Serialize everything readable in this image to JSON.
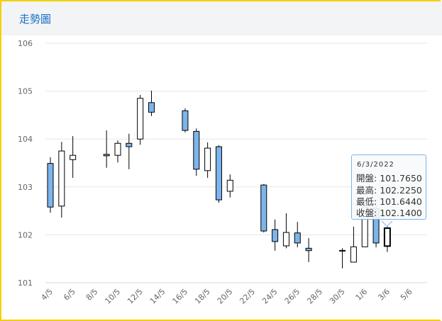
{
  "header": {
    "title": "走勢圖"
  },
  "colors": {
    "down": "#7cb5ec",
    "up": "#ffffff",
    "stroke": "#000000",
    "grid": "#e6e6e6",
    "accent": "#1a6fc4"
  },
  "tooltip": {
    "date": "6/3/2022",
    "open_label": "開盤",
    "open": "101.7650",
    "high_label": "最高",
    "high": "102.2250",
    "low_label": "最低",
    "low": "101.6440",
    "close_label": "收盤",
    "close": "102.1400"
  },
  "chart_data": {
    "type": "candlestick",
    "title": "走勢圖",
    "ylim": [
      101,
      106
    ],
    "yticks": [
      101,
      102,
      103,
      104,
      105,
      106
    ],
    "xtick_labels": [
      "4/5",
      "6/5",
      "8/5",
      "10/5",
      "12/5",
      "14/5",
      "16/5",
      "18/5",
      "20/5",
      "22/5",
      "24/5",
      "26/5",
      "28/5",
      "30/5",
      "1/6",
      "3/6",
      "5/6"
    ],
    "candles": [
      {
        "date": "4/5",
        "o": 103.49,
        "h": 103.62,
        "l": 102.46,
        "c": 102.58
      },
      {
        "date": "5/5",
        "o": 102.6,
        "h": 103.94,
        "l": 102.36,
        "c": 103.75
      },
      {
        "date": "6/5",
        "o": 103.57,
        "h": 104.06,
        "l": 103.19,
        "c": 103.66
      },
      {
        "date": "9/5",
        "o": 103.68,
        "h": 104.18,
        "l": 103.4,
        "c": 103.65
      },
      {
        "date": "10/5",
        "o": 103.66,
        "h": 103.97,
        "l": 103.51,
        "c": 103.91
      },
      {
        "date": "11/5",
        "o": 103.91,
        "h": 104.11,
        "l": 103.37,
        "c": 103.84
      },
      {
        "date": "12/5",
        "o": 104.0,
        "h": 104.92,
        "l": 103.88,
        "c": 104.85
      },
      {
        "date": "13/5",
        "o": 104.76,
        "h": 105.01,
        "l": 104.48,
        "c": 104.56
      },
      {
        "date": "16/5",
        "o": 104.59,
        "h": 104.64,
        "l": 104.14,
        "c": 104.18
      },
      {
        "date": "17/5",
        "o": 104.16,
        "h": 104.22,
        "l": 103.23,
        "c": 103.37
      },
      {
        "date": "18/5",
        "o": 103.34,
        "h": 103.93,
        "l": 103.19,
        "c": 103.81
      },
      {
        "date": "19/5",
        "o": 103.84,
        "h": 103.87,
        "l": 102.67,
        "c": 102.73
      },
      {
        "date": "20/5",
        "o": 102.91,
        "h": 103.26,
        "l": 102.78,
        "c": 103.14
      },
      {
        "date": "23/5",
        "o": 103.04,
        "h": 103.06,
        "l": 102.05,
        "c": 102.08
      },
      {
        "date": "24/5",
        "o": 102.11,
        "h": 102.32,
        "l": 101.67,
        "c": 101.86
      },
      {
        "date": "25/5",
        "o": 101.77,
        "h": 102.45,
        "l": 101.72,
        "c": 102.05
      },
      {
        "date": "26/5",
        "o": 102.04,
        "h": 102.27,
        "l": 101.74,
        "c": 101.83
      },
      {
        "date": "27/5",
        "o": 101.72,
        "h": 101.93,
        "l": 101.43,
        "c": 101.67
      },
      {
        "date": "30/5",
        "o": 101.67,
        "h": 101.72,
        "l": 101.3,
        "c": 101.675
      },
      {
        "date": "31/5",
        "o": 101.43,
        "h": 102.17,
        "l": 101.43,
        "c": 101.75
      },
      {
        "date": "1/6",
        "o": 101.75,
        "h": 102.65,
        "l": 101.75,
        "c": 102.58
      },
      {
        "date": "2/6",
        "o": 102.55,
        "h": 102.6,
        "l": 101.74,
        "c": 101.83
      },
      {
        "date": "3/6",
        "o": 101.765,
        "h": 102.225,
        "l": 101.644,
        "c": 102.14
      }
    ]
  }
}
